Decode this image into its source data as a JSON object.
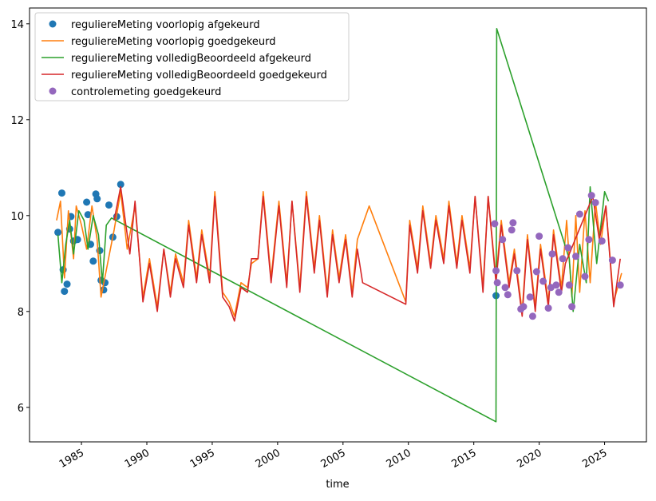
{
  "chart_data": {
    "type": "line",
    "xlabel": "time",
    "xlim": [
      1981.03,
      2028.2
    ],
    "xticks": [
      1985,
      1990,
      1995,
      2000,
      2005,
      2010,
      2015,
      2020,
      2025
    ],
    "ylim": [
      5.28,
      14.33
    ],
    "yticks": [
      6,
      8,
      10,
      12,
      14
    ],
    "grid": false,
    "legend": "upper left",
    "series": [
      {
        "name": "reguliereMeting voorlopig afgekeurd",
        "mode": "markers",
        "color": "#1f77b4",
        "x": [
          1983.2,
          1983.5,
          1983.6,
          1983.7,
          1983.9,
          1984.1,
          1984.2,
          1984.4,
          1984.7,
          1985.4,
          1985.5,
          1985.7,
          1985.9,
          1986.1,
          1986.2,
          1986.4,
          1986.5,
          1986.7,
          1986.8,
          1987.1,
          1987.4,
          1987.7,
          1988.0,
          2016.7
        ],
        "values": [
          9.65,
          10.47,
          8.87,
          8.42,
          8.57,
          9.72,
          9.98,
          9.47,
          9.5,
          10.28,
          10.02,
          9.4,
          9.05,
          10.45,
          10.35,
          9.27,
          8.65,
          8.45,
          8.6,
          10.22,
          9.55,
          9.98,
          10.65,
          8.33
        ]
      },
      {
        "name": "reguliereMeting voorlopig goedgekeurd",
        "mode": "lines",
        "color": "#ff7f0e",
        "x": [
          1983.1,
          1983.4,
          1983.7,
          1984.0,
          1984.4,
          1984.6,
          1985.0,
          1985.4,
          1985.8,
          1986.2,
          1986.5,
          1987.0,
          1987.5,
          1988.0,
          1988.5,
          1989.1,
          1989.7,
          1990.2,
          1990.8,
          1991.3,
          1991.8,
          1992.2,
          1992.8,
          1993.2,
          1993.8,
          1994.2,
          1994.8,
          1995.2,
          1995.8,
          1996.3,
          1996.7,
          1997.2,
          1997.7,
          1998.0,
          1998.5,
          1998.9,
          1999.5,
          2000.1,
          2000.7,
          2001.1,
          2001.7,
          2002.2,
          2002.8,
          2003.2,
          2003.8,
          2004.2,
          2004.7,
          2005.2,
          2005.7,
          2006.1,
          2007.0,
          2009.8,
          2010.1,
          2010.7,
          2011.1,
          2011.7,
          2012.1,
          2012.7,
          2013.1,
          2013.7,
          2014.1,
          2014.7,
          2015.1,
          2015.7,
          2016.1,
          2016.7,
          2017.1,
          2017.7,
          2018.1,
          2018.7,
          2019.1,
          2019.7,
          2020.1,
          2020.7,
          2021.1,
          2021.7,
          2022.1,
          2022.5,
          2022.8,
          2023.1,
          2023.5,
          2023.9,
          2024.3,
          2024.7,
          2025.1,
          2025.7,
          2026.3
        ],
        "values": [
          9.9,
          10.3,
          8.7,
          10.1,
          9.1,
          10.2,
          9.8,
          9.3,
          10.2,
          9.5,
          8.3,
          9.0,
          9.7,
          10.5,
          9.3,
          10.2,
          8.3,
          9.1,
          8.1,
          9.3,
          8.4,
          9.2,
          8.6,
          9.9,
          8.7,
          9.7,
          8.7,
          10.5,
          8.4,
          8.2,
          7.9,
          8.6,
          8.5,
          9.0,
          9.1,
          10.5,
          8.7,
          10.3,
          8.6,
          10.3,
          8.5,
          10.5,
          8.9,
          10.0,
          8.4,
          9.7,
          8.7,
          9.6,
          8.4,
          9.5,
          10.2,
          8.2,
          9.9,
          8.9,
          10.2,
          9.0,
          10.0,
          9.1,
          10.3,
          9.0,
          10.0,
          8.9,
          10.4,
          8.5,
          10.4,
          8.7,
          9.9,
          8.6,
          9.3,
          8.0,
          9.6,
          8.1,
          9.4,
          8.2,
          9.7,
          8.5,
          9.9,
          8.3,
          10.0,
          8.4,
          10.1,
          8.6,
          10.3,
          9.4,
          10.2,
          8.2,
          8.8
        ]
      },
      {
        "name": "reguliereMeting volledigBeoordeeld afgekeurd",
        "mode": "lines",
        "color": "#2ca02c",
        "x": [
          1983.2,
          1983.5,
          1983.8,
          1984.1,
          1984.4,
          1984.8,
          1985.2,
          1985.5,
          1985.9,
          1986.3,
          1986.6,
          1986.9,
          1987.3,
          2016.7,
          2016.75,
          2022.3,
          2022.6,
          2023.1,
          2023.6,
          2023.9,
          2024.4,
          2025.0,
          2025.3
        ],
        "values": [
          9.6,
          8.6,
          9.4,
          9.9,
          9.2,
          10.1,
          9.9,
          9.3,
          10.0,
          9.6,
          8.6,
          9.8,
          9.95,
          5.7,
          13.9,
          9.1,
          8.0,
          9.4,
          8.6,
          10.6,
          9.0,
          10.5,
          10.3
        ]
      },
      {
        "name": "reguliereMeting volledigBeoordeeld goedgekeurd",
        "mode": "lines",
        "color": "#d62728",
        "x": [
          1987.5,
          1988.0,
          1988.7,
          1989.1,
          1989.7,
          1990.2,
          1990.8,
          1991.3,
          1991.8,
          1992.2,
          1992.8,
          1993.2,
          1993.8,
          1994.2,
          1994.8,
          1995.2,
          1995.8,
          1996.3,
          1996.7,
          1997.2,
          1997.7,
          1998.0,
          1998.5,
          1998.9,
          1999.5,
          2000.1,
          2000.7,
          2001.1,
          2001.7,
          2002.2,
          2002.8,
          2003.2,
          2003.8,
          2004.2,
          2004.7,
          2005.2,
          2005.7,
          2006.1,
          2006.5,
          2009.8,
          2010.1,
          2010.7,
          2011.1,
          2011.7,
          2012.1,
          2012.7,
          2013.1,
          2013.7,
          2014.1,
          2014.7,
          2015.1,
          2015.7,
          2016.1,
          2016.7,
          2017.1,
          2017.7,
          2018.1,
          2018.7,
          2019.1,
          2019.7,
          2020.1,
          2020.7,
          2021.1,
          2021.7,
          2022.0,
          2023.8,
          2024.1,
          2024.6,
          2025.1,
          2025.7,
          2026.2
        ],
        "values": [
          9.9,
          10.6,
          9.2,
          10.3,
          8.2,
          9.0,
          8.0,
          9.3,
          8.3,
          9.1,
          8.5,
          9.8,
          8.6,
          9.6,
          8.6,
          10.4,
          8.3,
          8.1,
          7.8,
          8.5,
          8.4,
          9.1,
          9.1,
          10.4,
          8.6,
          10.2,
          8.5,
          10.3,
          8.4,
          10.4,
          8.8,
          9.9,
          8.3,
          9.6,
          8.6,
          9.5,
          8.3,
          9.3,
          8.6,
          8.15,
          9.8,
          8.8,
          10.1,
          8.9,
          9.9,
          9.0,
          10.2,
          8.9,
          9.9,
          8.8,
          10.4,
          8.4,
          10.4,
          8.6,
          9.8,
          8.5,
          9.2,
          7.9,
          9.5,
          8.0,
          9.3,
          8.1,
          9.6,
          8.4,
          9.0,
          10.2,
          10.4,
          9.5,
          10.2,
          8.1,
          9.1
        ]
      },
      {
        "name": "controlemeting goedgekeurd",
        "mode": "markers",
        "color": "#9467bd",
        "x": [
          2016.6,
          2016.7,
          2016.8,
          2017.2,
          2017.4,
          2017.6,
          2017.9,
          2018.0,
          2018.3,
          2018.6,
          2018.8,
          2019.3,
          2019.5,
          2019.8,
          2020.0,
          2020.3,
          2020.7,
          2020.9,
          2021.0,
          2021.3,
          2021.5,
          2021.8,
          2022.2,
          2022.3,
          2022.5,
          2022.8,
          2023.1,
          2023.5,
          2023.8,
          2024.0,
          2024.3,
          2024.8,
          2025.6,
          2026.2
        ],
        "values": [
          9.83,
          8.85,
          8.6,
          9.5,
          8.5,
          8.35,
          9.7,
          9.85,
          8.85,
          8.05,
          8.1,
          8.3,
          7.9,
          8.83,
          9.57,
          8.63,
          8.07,
          8.5,
          9.2,
          8.55,
          8.4,
          9.1,
          9.33,
          8.55,
          8.1,
          9.15,
          10.03,
          8.73,
          9.5,
          10.42,
          10.27,
          9.47,
          9.07,
          8.55
        ]
      }
    ]
  }
}
